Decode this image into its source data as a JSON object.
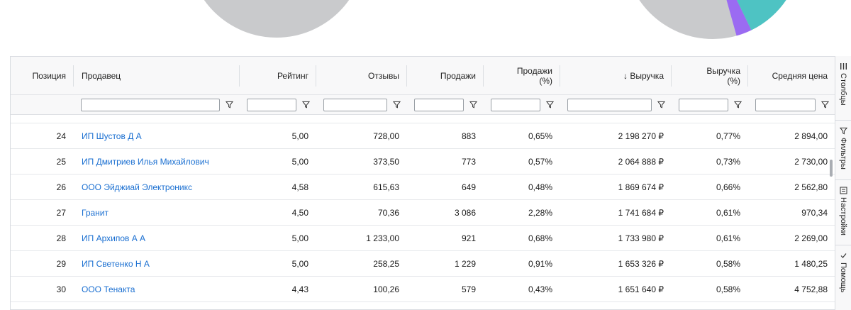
{
  "table": {
    "columns": [
      {
        "key": "position",
        "label": "Позиция",
        "align": "right"
      },
      {
        "key": "seller",
        "label": "Продавец",
        "align": "left"
      },
      {
        "key": "rating",
        "label": "Рейтинг",
        "align": "right"
      },
      {
        "key": "reviews",
        "label": "Отзывы",
        "align": "right"
      },
      {
        "key": "sales",
        "label": "Продажи",
        "align": "right"
      },
      {
        "key": "sales_pct",
        "label": "Продажи\n(%)",
        "align": "right"
      },
      {
        "key": "revenue",
        "label": "↓ Выручка",
        "align": "right"
      },
      {
        "key": "revenue_pct",
        "label": "Выручка\n(%)",
        "align": "right"
      },
      {
        "key": "avg_price",
        "label": "Средняя цена",
        "align": "right"
      }
    ],
    "rows": [
      {
        "position": "24",
        "seller": "ИП Шустов Д А",
        "rating": "5,00",
        "reviews": "728,00",
        "sales": "883",
        "sales_pct": "0,65%",
        "revenue": "2 198 270 ₽",
        "revenue_pct": "0,77%",
        "avg_price": "2 894,00"
      },
      {
        "position": "25",
        "seller": "ИП Дмитриев Илья Михайлович",
        "rating": "5,00",
        "reviews": "373,50",
        "sales": "773",
        "sales_pct": "0,57%",
        "revenue": "2 064 888 ₽",
        "revenue_pct": "0,73%",
        "avg_price": "2 730,00"
      },
      {
        "position": "26",
        "seller": "ООО Эйджиай Электроникс",
        "rating": "4,58",
        "reviews": "615,63",
        "sales": "649",
        "sales_pct": "0,48%",
        "revenue": "1 869 674 ₽",
        "revenue_pct": "0,66%",
        "avg_price": "2 562,80"
      },
      {
        "position": "27",
        "seller": "Гранит",
        "rating": "4,50",
        "reviews": "70,36",
        "sales": "3 086",
        "sales_pct": "2,28%",
        "revenue": "1 741 684 ₽",
        "revenue_pct": "0,61%",
        "avg_price": "970,34"
      },
      {
        "position": "28",
        "seller": "ИП Архипов А А",
        "rating": "5,00",
        "reviews": "1 233,00",
        "sales": "921",
        "sales_pct": "0,68%",
        "revenue": "1 733 980 ₽",
        "revenue_pct": "0,61%",
        "avg_price": "2 269,00"
      },
      {
        "position": "29",
        "seller": "ИП Светенко Н А",
        "rating": "5,00",
        "reviews": "258,25",
        "sales": "1 229",
        "sales_pct": "0,91%",
        "revenue": "1 653 326 ₽",
        "revenue_pct": "0,58%",
        "avg_price": "1 480,25"
      },
      {
        "position": "30",
        "seller": "ООО Тенакта",
        "rating": "4,43",
        "reviews": "100,26",
        "sales": "579",
        "sales_pct": "0,43%",
        "revenue": "1 651 640 ₽",
        "revenue_pct": "0,58%",
        "avg_price": "4 752,88"
      }
    ]
  },
  "sidebar": {
    "tabs": [
      {
        "label": "Столбцы",
        "icon": "columns-icon"
      },
      {
        "label": "Фильтры",
        "icon": "filter-icon"
      },
      {
        "label": "Настройки",
        "icon": "settings-icon"
      },
      {
        "label": "Помощь",
        "icon": "help-icon"
      }
    ]
  },
  "colors": {
    "pie_gray": "#c9cacc",
    "pie_teal": "#4ec3c3",
    "pie_purple": "#9b6bf2",
    "link": "#1a6fd1"
  }
}
